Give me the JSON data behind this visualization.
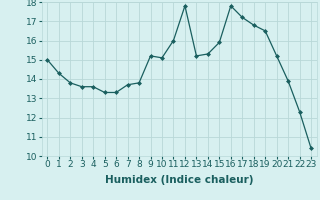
{
  "x": [
    0,
    1,
    2,
    3,
    4,
    5,
    6,
    7,
    8,
    9,
    10,
    11,
    12,
    13,
    14,
    15,
    16,
    17,
    18,
    19,
    20,
    21,
    22,
    23
  ],
  "y": [
    15.0,
    14.3,
    13.8,
    13.6,
    13.6,
    13.3,
    13.3,
    13.7,
    13.8,
    15.2,
    15.1,
    16.0,
    17.8,
    15.2,
    15.3,
    15.9,
    17.8,
    17.2,
    16.8,
    16.5,
    15.2,
    13.9,
    12.3,
    10.4
  ],
  "line_color": "#1a5f5f",
  "marker": "D",
  "marker_size": 2,
  "bg_color": "#d7f0f0",
  "grid_color": "#b8d8d8",
  "xlabel": "Humidex (Indice chaleur)",
  "xlim": [
    -0.5,
    23.5
  ],
  "ylim": [
    10,
    18
  ],
  "yticks": [
    10,
    11,
    12,
    13,
    14,
    15,
    16,
    17,
    18
  ],
  "xticks": [
    0,
    1,
    2,
    3,
    4,
    5,
    6,
    7,
    8,
    9,
    10,
    11,
    12,
    13,
    14,
    15,
    16,
    17,
    18,
    19,
    20,
    21,
    22,
    23
  ],
  "xlabel_fontsize": 7.5,
  "tick_fontsize": 6.5
}
